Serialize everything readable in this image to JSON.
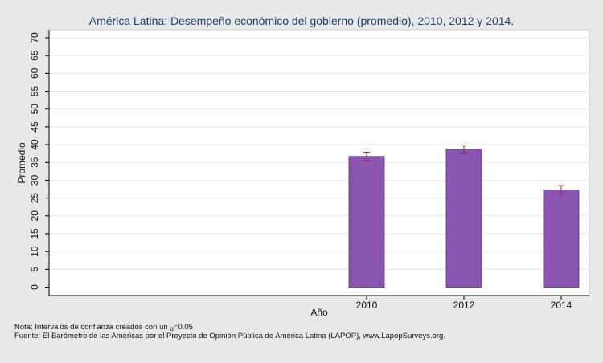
{
  "chart_data": {
    "type": "bar",
    "title": "América Latina: Desempeño económico del gobierno (promedio), 2010, 2012 y 2014.",
    "ylabel": "Promedio",
    "xlabel": "Año",
    "categories": [
      "2010",
      "2012",
      "2014"
    ],
    "values": [
      36.7,
      38.7,
      27.3
    ],
    "ci_low": [
      35.5,
      37.5,
      26.1
    ],
    "ci_high": [
      37.9,
      39.9,
      28.5
    ],
    "ylim": [
      0,
      70
    ],
    "yticks": [
      0,
      5,
      10,
      15,
      20,
      25,
      30,
      35,
      40,
      45,
      50,
      55,
      60,
      65,
      70
    ],
    "grid": true,
    "bar_color": "#8a55b0",
    "error_bar_color": "#8b2c3a"
  },
  "notes": {
    "note_prefix": "Nota: Intervalos de confianza creados con un ",
    "note_alpha": "α",
    "note_suffix": "=0.05",
    "source": "Fuente: El Barómetro de las Américas por el Proyecto de Opinión Pública de América Latina (LAPOP), www.LapopSurveys.org."
  },
  "colors": {
    "background": "#e8e8e8",
    "plot_background": "#ffffff",
    "grid": "#e6e6e6",
    "title": "#1f3d66"
  }
}
